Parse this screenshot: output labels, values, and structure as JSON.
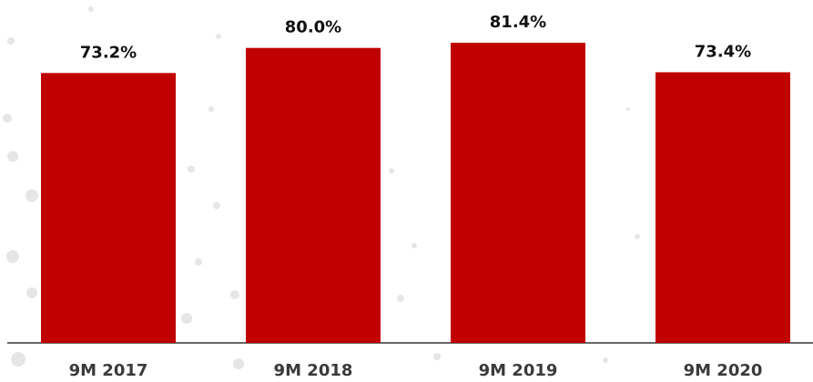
{
  "chart_data": {
    "type": "bar",
    "categories": [
      "9M 2017",
      "9M 2018",
      "9M 2019",
      "9M 2020"
    ],
    "values": [
      73.2,
      80.0,
      81.4,
      73.4
    ],
    "value_labels": [
      "73.2%",
      "80.0%",
      "81.4%",
      "73.4%"
    ],
    "color": "#c00000",
    "ylim": [
      0,
      93
    ]
  }
}
